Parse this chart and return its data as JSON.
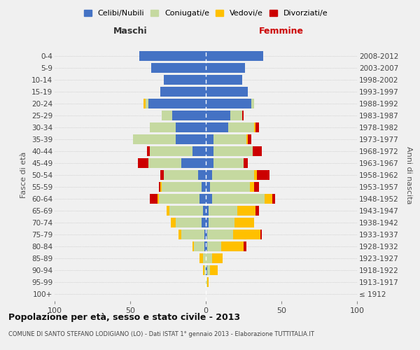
{
  "age_groups": [
    "100+",
    "95-99",
    "90-94",
    "85-89",
    "80-84",
    "75-79",
    "70-74",
    "65-69",
    "60-64",
    "55-59",
    "50-54",
    "45-49",
    "40-44",
    "35-39",
    "30-34",
    "25-29",
    "20-24",
    "15-19",
    "10-14",
    "5-9",
    "0-4"
  ],
  "birth_years": [
    "≤ 1912",
    "1913-1917",
    "1918-1922",
    "1923-1927",
    "1928-1932",
    "1933-1937",
    "1938-1942",
    "1943-1947",
    "1948-1952",
    "1953-1957",
    "1958-1962",
    "1963-1967",
    "1968-1972",
    "1973-1977",
    "1978-1982",
    "1983-1987",
    "1988-1992",
    "1993-1997",
    "1998-2002",
    "2003-2007",
    "2008-2012"
  ],
  "maschi": {
    "celibi": [
      0,
      0,
      0,
      0,
      1,
      1,
      3,
      2,
      4,
      3,
      5,
      16,
      9,
      20,
      20,
      22,
      38,
      30,
      28,
      36,
      44
    ],
    "coniugati": [
      0,
      0,
      1,
      2,
      7,
      15,
      17,
      22,
      27,
      26,
      23,
      22,
      28,
      28,
      17,
      7,
      2,
      0,
      0,
      0,
      0
    ],
    "vedovi": [
      0,
      0,
      1,
      2,
      1,
      2,
      3,
      2,
      1,
      1,
      0,
      0,
      0,
      0,
      0,
      0,
      1,
      0,
      0,
      0,
      0
    ],
    "divorziati": [
      0,
      0,
      0,
      0,
      0,
      0,
      0,
      0,
      5,
      1,
      2,
      7,
      2,
      0,
      0,
      0,
      0,
      0,
      0,
      0,
      0
    ]
  },
  "femmine": {
    "nubili": [
      0,
      0,
      1,
      0,
      1,
      1,
      2,
      2,
      4,
      3,
      4,
      5,
      5,
      5,
      15,
      16,
      30,
      28,
      24,
      26,
      38
    ],
    "coniugate": [
      0,
      1,
      2,
      4,
      9,
      17,
      17,
      19,
      35,
      26,
      28,
      20,
      26,
      22,
      17,
      8,
      2,
      0,
      0,
      0,
      0
    ],
    "vedove": [
      0,
      1,
      5,
      7,
      15,
      18,
      13,
      12,
      5,
      3,
      2,
      0,
      0,
      1,
      1,
      0,
      0,
      0,
      0,
      0,
      0
    ],
    "divorziate": [
      0,
      0,
      0,
      0,
      2,
      1,
      0,
      2,
      2,
      3,
      8,
      3,
      6,
      2,
      2,
      1,
      0,
      0,
      0,
      0,
      0
    ]
  },
  "colors": {
    "celibi": "#4472c4",
    "coniugati": "#c5d9a0",
    "vedovi": "#ffc000",
    "divorziati": "#cc0000"
  },
  "xlim": 100,
  "title": "Popolazione per età, sesso e stato civile - 2013",
  "subtitle": "COMUNE DI SANTO STEFANO LODIGIANO (LO) - Dati ISTAT 1° gennaio 2013 - Elaborazione TUTTITALIA.IT",
  "ylabel": "Fasce di età",
  "ylabel_right": "Anni di nascita",
  "legend_labels": [
    "Celibi/Nubili",
    "Coniugati/e",
    "Vedovi/e",
    "Divorziati/e"
  ],
  "bg_color": "#f0f0f0",
  "plot_bg": "#f0f0f0"
}
